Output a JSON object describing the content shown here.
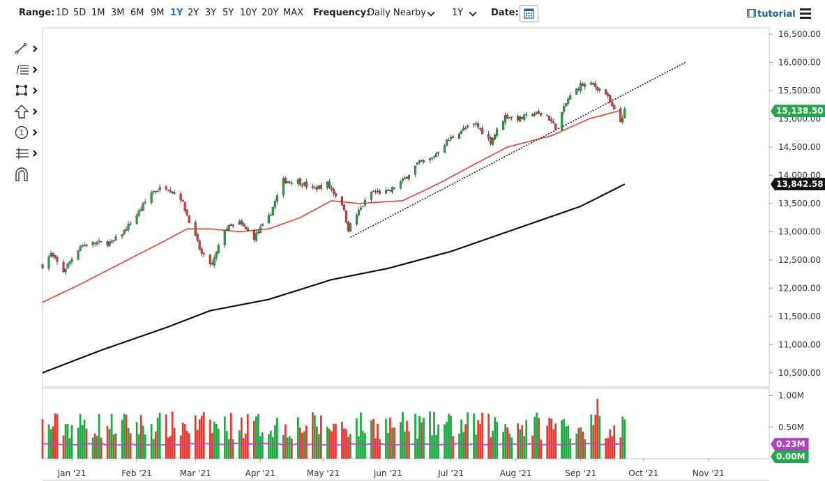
{
  "toolbar": {
    "range_label": "Range:",
    "ranges": [
      "1D",
      "5D",
      "1M",
      "3M",
      "6M",
      "9M",
      "1Y",
      "2Y",
      "3Y",
      "5Y",
      "10Y",
      "20Y",
      "MAX"
    ],
    "active_range": "1Y",
    "frequency_label": "Frequency:",
    "frequency_value": "Daily Nearby",
    "period_value": "1Y",
    "date_label": "Date:",
    "tutorial_label": "tutorial"
  },
  "left_tools": [
    "line-tool-icon",
    "fibonacci-tool-icon",
    "shape-tool-icon",
    "arrow-tool-icon",
    "counter-tool-icon",
    "measure-tool-icon",
    "magnet-icon"
  ],
  "colors": {
    "up": "#1aaa3e",
    "down": "#e8372c",
    "ma50": "#e8402e",
    "ma200": "#111111",
    "trend": "#111111",
    "vol_avg": "#c042c8",
    "badge_green": "#22a84a",
    "badge_dark": "#111111",
    "badge_purple": "#b23fc9"
  },
  "badges": {
    "last_price": "15,138.50",
    "ma200_value": "13,842.58",
    "vol_avg_value": "0.23M",
    "vol_value": "0.00M"
  },
  "chart_data": {
    "type": "candlestick",
    "y_axis": {
      "min": 10250,
      "max": 16500,
      "ticks": [
        "16,500.00",
        "16,000.00",
        "15,500.00",
        "15,000.00",
        "14,500.00",
        "14,000.00",
        "13,500.00",
        "13,000.00",
        "12,500.00",
        "12,000.00",
        "11,500.00",
        "11,000.00",
        "10,500.00"
      ],
      "tick_values": [
        16500,
        16000,
        15500,
        15000,
        14500,
        14000,
        13500,
        13000,
        12500,
        12000,
        11500,
        11000,
        10500
      ]
    },
    "x_axis": {
      "labels": [
        "Jan '21",
        "Feb '21",
        "Mar '21",
        "Apr '21",
        "May '21",
        "Jun '21",
        "Jul '21",
        "Aug '21",
        "Sep '21",
        "Oct '21",
        "Nov '21"
      ],
      "start": "2020-12-18",
      "end": "2021-11-30"
    },
    "price_anchors": [
      [
        "2020-12-18",
        12400
      ],
      [
        "2020-12-22",
        12600
      ],
      [
        "2020-12-28",
        12300
      ],
      [
        "2021-01-05",
        12750
      ],
      [
        "2021-01-12",
        12800
      ],
      [
        "2021-01-20",
        12800
      ],
      [
        "2021-01-27",
        13050
      ],
      [
        "2021-02-03",
        13400
      ],
      [
        "2021-02-08",
        13700
      ],
      [
        "2021-02-15",
        13800
      ],
      [
        "2021-02-22",
        13600
      ],
      [
        "2021-02-26",
        13200
      ],
      [
        "2021-03-04",
        12600
      ],
      [
        "2021-03-09",
        12400
      ],
      [
        "2021-03-15",
        13050
      ],
      [
        "2021-03-22",
        13150
      ],
      [
        "2021-03-29",
        12900
      ],
      [
        "2021-04-05",
        13250
      ],
      [
        "2021-04-12",
        13900
      ],
      [
        "2021-04-19",
        13900
      ],
      [
        "2021-04-26",
        13750
      ],
      [
        "2021-05-03",
        13850
      ],
      [
        "2021-05-10",
        13500
      ],
      [
        "2021-05-13",
        13050
      ],
      [
        "2021-05-17",
        13300
      ],
      [
        "2021-05-24",
        13700
      ],
      [
        "2021-06-01",
        13700
      ],
      [
        "2021-06-08",
        13900
      ],
      [
        "2021-06-15",
        14200
      ],
      [
        "2021-06-22",
        14300
      ],
      [
        "2021-06-29",
        14600
      ],
      [
        "2021-07-06",
        14800
      ],
      [
        "2021-07-13",
        14900
      ],
      [
        "2021-07-20",
        14600
      ],
      [
        "2021-07-27",
        15050
      ],
      [
        "2021-08-03",
        15000
      ],
      [
        "2021-08-10",
        15100
      ],
      [
        "2021-08-16",
        15050
      ],
      [
        "2021-08-20",
        14850
      ],
      [
        "2021-08-26",
        15350
      ],
      [
        "2021-09-01",
        15600
      ],
      [
        "2021-09-07",
        15600
      ],
      [
        "2021-09-13",
        15450
      ],
      [
        "2021-09-16",
        15200
      ],
      [
        "2021-09-20",
        14950
      ],
      [
        "2021-09-22",
        15138.5
      ]
    ],
    "ma50_anchors": [
      [
        "2020-12-18",
        11750
      ],
      [
        "2021-01-04",
        12050
      ],
      [
        "2021-01-25",
        12450
      ],
      [
        "2021-02-15",
        12850
      ],
      [
        "2021-02-25",
        13050
      ],
      [
        "2021-03-08",
        13050
      ],
      [
        "2021-03-22",
        13000
      ],
      [
        "2021-04-05",
        13050
      ],
      [
        "2021-04-20",
        13250
      ],
      [
        "2021-05-05",
        13550
      ],
      [
        "2021-05-18",
        13500
      ],
      [
        "2021-06-08",
        13550
      ],
      [
        "2021-06-25",
        13850
      ],
      [
        "2021-07-10",
        14150
      ],
      [
        "2021-07-28",
        14500
      ],
      [
        "2021-08-18",
        14700
      ],
      [
        "2021-09-05",
        15000
      ],
      [
        "2021-09-20",
        15150
      ]
    ],
    "ma200_anchors": [
      [
        "2020-12-18",
        10500
      ],
      [
        "2021-01-15",
        10900
      ],
      [
        "2021-02-15",
        11300
      ],
      [
        "2021-03-08",
        11600
      ],
      [
        "2021-04-05",
        11800
      ],
      [
        "2021-05-05",
        12150
      ],
      [
        "2021-06-01",
        12350
      ],
      [
        "2021-07-01",
        12650
      ],
      [
        "2021-08-01",
        13050
      ],
      [
        "2021-09-01",
        13450
      ],
      [
        "2021-09-22",
        13842.58
      ]
    ],
    "trendline": {
      "start": [
        "2021-05-14",
        12900
      ],
      "end": [
        "2021-10-21",
        16000
      ]
    },
    "volume": {
      "max_label": "1.00M",
      "mid_label": "0.50M",
      "max": 1.05,
      "avg_level": 0.23
    }
  }
}
